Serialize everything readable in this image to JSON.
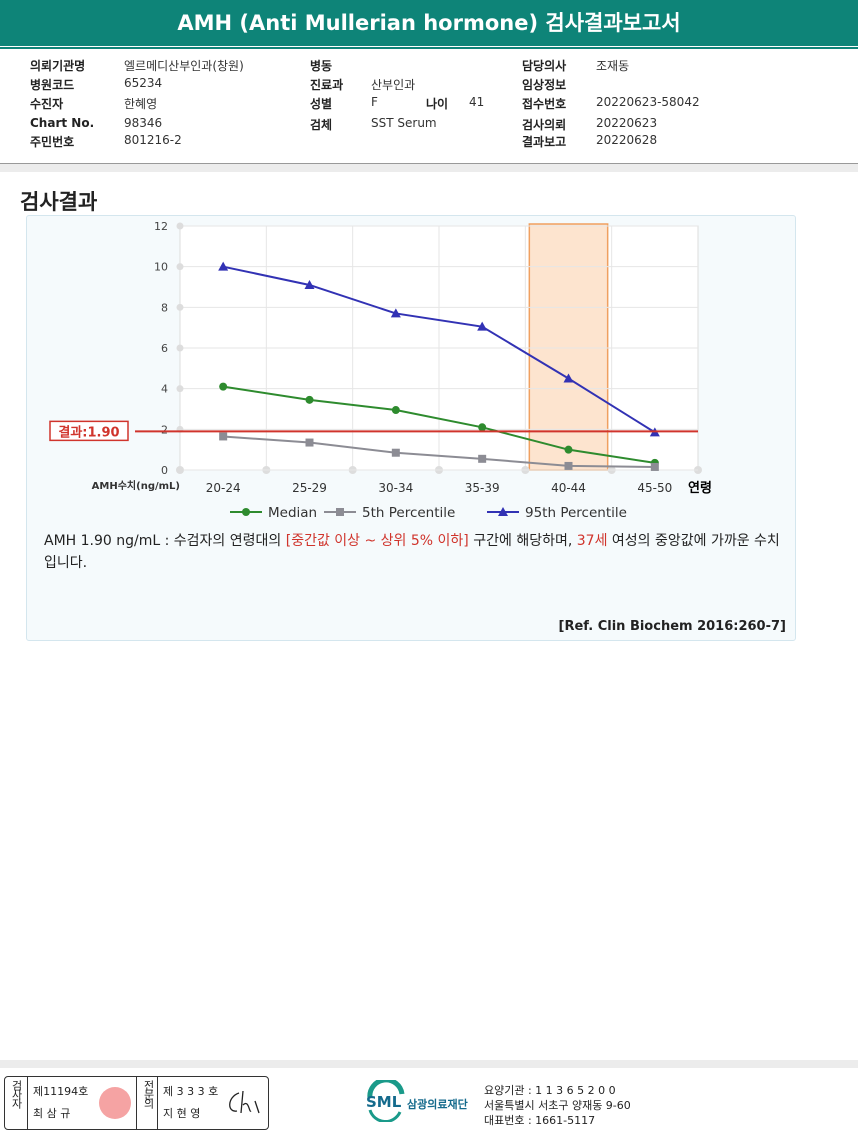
{
  "header": {
    "title": "AMH (Anti Mullerian hormone) 검사결과보고서"
  },
  "patient_info": {
    "columns": [
      [
        {
          "label": "의뢰기관명",
          "value": "엘르메디산부인과(창원)"
        },
        {
          "label": "병원코드",
          "value": "65234"
        },
        {
          "label": "수진자",
          "value": "한혜영"
        },
        {
          "label": "Chart No.",
          "value": "98346"
        },
        {
          "label": "주민번호",
          "value": "801216-2"
        }
      ],
      [
        {
          "label": "병동"
        },
        {
          "label": "진료과",
          "value": "산부인과"
        },
        {
          "label": "성별",
          "value": "F"
        },
        {
          "label": "나이",
          "value": "41"
        },
        {
          "label": "검체",
          "value": "SST Serum"
        }
      ],
      [
        {
          "label": "담당의사",
          "value": "조재동"
        },
        {
          "label": "임상정보"
        },
        {
          "label": "접수번호",
          "value": "20220623-58042"
        },
        {
          "label": "검사의뢰",
          "value": "20220623"
        },
        {
          "label": "결과보고",
          "value": "20220628"
        }
      ]
    ]
  },
  "section_title": "검사결과",
  "chart_data": {
    "type": "line",
    "categories": [
      "20-24",
      "25-29",
      "30-34",
      "35-39",
      "40-44",
      "45-50"
    ],
    "x_label": "연령",
    "y_label": "AMH수치(ng/mL)",
    "ylim": [
      0,
      12
    ],
    "yticks": [
      0,
      2,
      4,
      6,
      8,
      10,
      12
    ],
    "grid": true,
    "highlight_category": "40-44",
    "series": [
      {
        "name": "Median",
        "color": "#2e8b2e",
        "marker": "circle",
        "values": [
          4.1,
          3.45,
          2.95,
          2.1,
          1.0,
          0.35
        ]
      },
      {
        "name": "5th Percentile",
        "color": "#8c8c94",
        "marker": "square",
        "values": [
          1.65,
          1.35,
          0.85,
          0.55,
          0.2,
          0.15
        ]
      },
      {
        "name": "95th Percentile",
        "color": "#3232b4",
        "marker": "triangle",
        "values": [
          10,
          9.1,
          7.7,
          7.05,
          4.5,
          1.85
        ]
      }
    ],
    "result_value": 1.9,
    "result_label": "결과:1.90",
    "result_color": "#d0342c"
  },
  "interpretation": {
    "parts": [
      "AMH  1.90 ng/mL : 수검자의 연령대의 ",
      "[중간값 이상 ~ 상위 5% 이하]",
      "  구간에 해당하며, ",
      "37세",
      " 여성의 중앙값에 가까운 수치입니다."
    ],
    "reference": "[Ref. Clin Biochem 2016:260-7]"
  },
  "footer": {
    "examiner": {
      "label": "검사자",
      "license": "제11194호",
      "name": "최 삼 규"
    },
    "specialist": {
      "label": "전문의",
      "license": "제 3 3 3 호",
      "name": "지 현 영"
    },
    "org": {
      "logo": "SML",
      "name": "삼광의료재단",
      "lines": [
        "요양기관 : 1 1 3 6 5 2 0 0",
        "서울특별시 서초구 양재동 9-60",
        "대표번호 : 1661-5117"
      ]
    }
  }
}
